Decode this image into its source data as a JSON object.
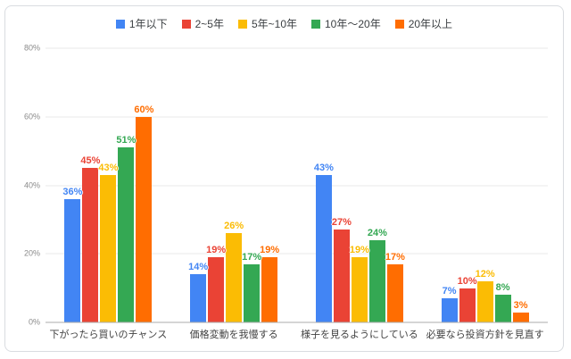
{
  "chart_data": {
    "type": "bar",
    "title": "",
    "xlabel": "",
    "ylabel": "",
    "ylim": [
      0,
      80
    ],
    "grid": true,
    "legend_position": "top",
    "value_label_format": "{v}%",
    "yticks": [
      "0%",
      "20%",
      "40%",
      "60%",
      "80%"
    ],
    "ytick_values": [
      0,
      20,
      40,
      60,
      80
    ],
    "categories": [
      "下がったら買いのチャンス",
      "価格変動を我慢する",
      "様子を見るようにしている",
      "必要なら投資方針を見直す"
    ],
    "series": [
      {
        "name": "1年以下",
        "color": "#4285F4",
        "values": [
          36,
          14,
          43,
          7
        ]
      },
      {
        "name": "2~5年",
        "color": "#EA4335",
        "values": [
          45,
          19,
          27,
          10
        ]
      },
      {
        "name": "5年~10年",
        "color": "#FBBC04",
        "values": [
          43,
          26,
          19,
          12
        ]
      },
      {
        "name": "10年～20年",
        "color": "#34A853",
        "values": [
          51,
          17,
          24,
          8
        ]
      },
      {
        "name": "20年以上",
        "color": "#FF6D01",
        "values": [
          60,
          19,
          17,
          3
        ]
      }
    ]
  },
  "style": {
    "card_border_color": "#d9dce0",
    "gridline_color": "#e9e9e9",
    "axis_line_color": "#ababab",
    "ytick_color": "#8a8a8a",
    "xtick_color": "#424242",
    "legend_text_color": "#3c4043"
  }
}
